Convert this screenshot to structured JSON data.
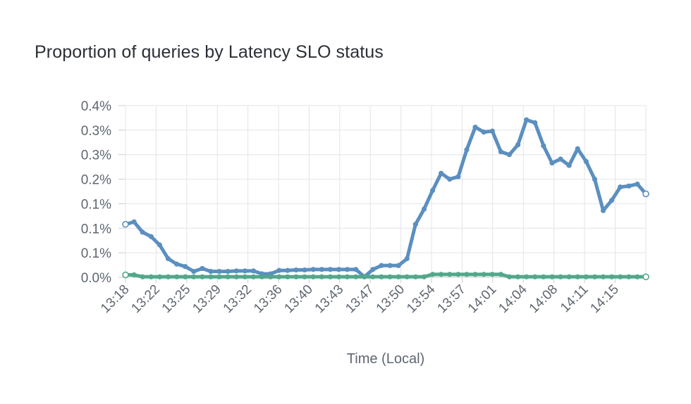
{
  "chart_data": {
    "type": "line",
    "title": "Proportion of queries by Latency SLO status",
    "xlabel": "Time (Local)",
    "ylabel": "",
    "y_tick_labels": [
      "0.0%",
      "0.1%",
      "0.1%",
      "0.1%",
      "0.2%",
      "0.3%",
      "0.3%",
      "0.4%"
    ],
    "ylim": [
      0,
      0.35
    ],
    "grid": true,
    "x_tick_labels": [
      "13:18",
      "13:22",
      "13:25",
      "13:29",
      "13:32",
      "13:36",
      "13:40",
      "13:43",
      "13:47",
      "13:50",
      "13:54",
      "13:57",
      "14:01",
      "14:04",
      "14:08",
      "14:11",
      "14:15"
    ],
    "series": [
      {
        "color": "#5b8fbf",
        "values": [
          0.108,
          0.113,
          0.092,
          0.083,
          0.066,
          0.038,
          0.027,
          0.022,
          0.012,
          0.018,
          0.012,
          0.012,
          0.012,
          0.013,
          0.013,
          0.013,
          0.007,
          0.007,
          0.014,
          0.014,
          0.015,
          0.015,
          0.016,
          0.016,
          0.016,
          0.016,
          0.016,
          0.016,
          0.001,
          0.016,
          0.024,
          0.024,
          0.024,
          0.038,
          0.108,
          0.139,
          0.177,
          0.212,
          0.2,
          0.205,
          0.26,
          0.306,
          0.296,
          0.298,
          0.256,
          0.25,
          0.27,
          0.321,
          0.315,
          0.268,
          0.233,
          0.241,
          0.228,
          0.262,
          0.236,
          0.2,
          0.136,
          0.157,
          0.184,
          0.186,
          0.19,
          0.17
        ]
      },
      {
        "color": "#52a88a",
        "values": [
          0.005,
          0.005,
          0.001,
          0.001,
          0.001,
          0.001,
          0.001,
          0.001,
          0.001,
          0.001,
          0.001,
          0.001,
          0.001,
          0.001,
          0.001,
          0.001,
          0.001,
          0.001,
          0.001,
          0.001,
          0.001,
          0.001,
          0.001,
          0.001,
          0.001,
          0.001,
          0.001,
          0.001,
          0.001,
          0.001,
          0.001,
          0.001,
          0.001,
          0.001,
          0.001,
          0.001,
          0.006,
          0.006,
          0.006,
          0.006,
          0.006,
          0.006,
          0.006,
          0.006,
          0.006,
          0.001,
          0.001,
          0.001,
          0.001,
          0.001,
          0.001,
          0.001,
          0.001,
          0.001,
          0.001,
          0.001,
          0.001,
          0.001,
          0.001,
          0.001,
          0.001,
          0.001
        ]
      }
    ]
  }
}
